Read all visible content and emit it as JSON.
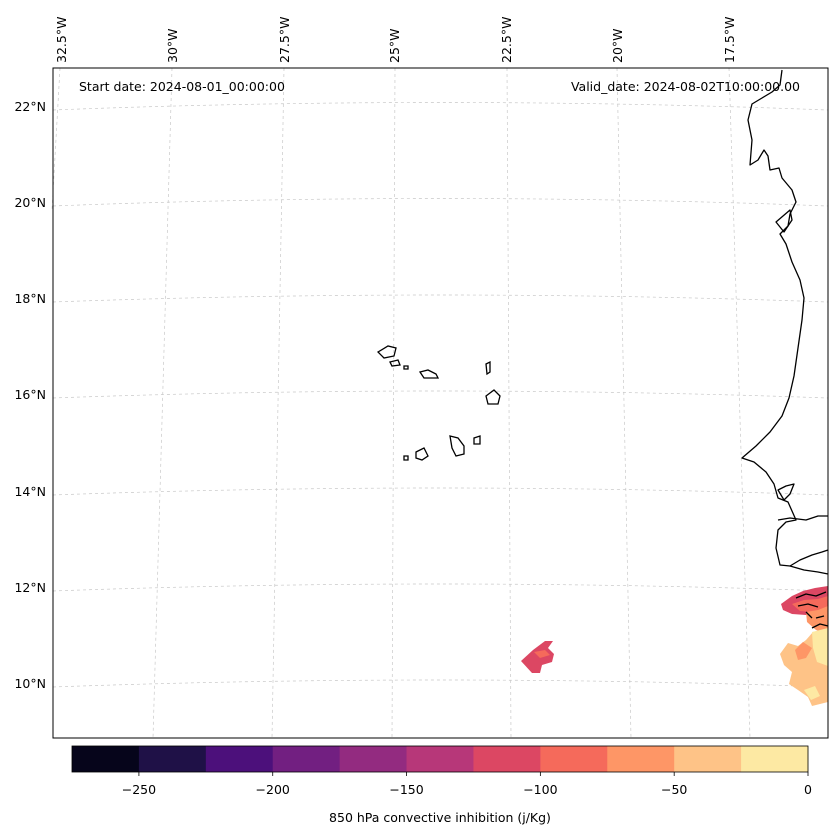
{
  "header": {
    "start_date": "Start date: 2024-08-01_00:00:00",
    "valid_date": "Valid_date: 2024-08-02T10:00:00.00"
  },
  "axes": {
    "lon_labels": [
      "32.5°W",
      "30°W",
      "27.5°W",
      "25°W",
      "22.5°W",
      "20°W",
      "17.5°W"
    ],
    "lat_labels": [
      "22°N",
      "20°N",
      "18°N",
      "16°N",
      "14°N",
      "12°N",
      "10°N"
    ]
  },
  "colorbar": {
    "label": "850 hPa convective inhibition (j/Kg)",
    "ticks": [
      "−250",
      "−200",
      "−150",
      "−100",
      "−50",
      "0"
    ],
    "min": -275,
    "max": 0,
    "colors": [
      "#06051b",
      "#1f1147",
      "#4c107b",
      "#721f81",
      "#932b80",
      "#b73779",
      "#dc4763",
      "#f56a5b",
      "#fe9666",
      "#fec387",
      "#fde9a3"
    ]
  },
  "colors": {
    "cin_-100_-75": "#dc4763",
    "cin_-75_-50": "#f56a5b",
    "cin_-50_-25": "#fe9666",
    "cin_-25_0": "#fec387",
    "cin_0": "#fde9a3"
  }
}
